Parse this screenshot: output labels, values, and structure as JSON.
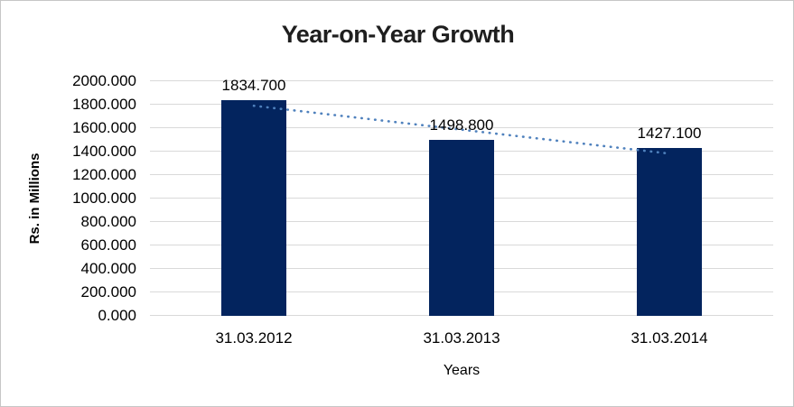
{
  "title": "Year-on-Year Growth",
  "chart_data": {
    "type": "bar",
    "title": "Year-on-Year Growth",
    "xlabel": "Years",
    "ylabel": "Rs. in Millions",
    "categories": [
      "31.03.2012",
      "31.03.2013",
      "31.03.2014"
    ],
    "values": [
      1834.7,
      1498.8,
      1427.1
    ],
    "data_labels": [
      "1834.700",
      "1498.800",
      "1427.100"
    ],
    "ylim": [
      0,
      2000
    ],
    "ytick_step": 200,
    "ytick_labels": [
      "0.000",
      "200.000",
      "400.000",
      "600.000",
      "800.000",
      "1000.000",
      "1200.000",
      "1400.000",
      "1600.000",
      "1800.000",
      "2000.000"
    ],
    "grid": true,
    "legend_position": "none",
    "trendline": {
      "type": "linear",
      "style": "dotted"
    }
  },
  "colors": {
    "bar": "#03245e",
    "trendline": "#4f81bd",
    "gridline": "#d9d9d9",
    "title_text": "#1f1f1f",
    "axis_text": "#000000",
    "border": "#c6c6c6",
    "background": "#ffffff"
  }
}
